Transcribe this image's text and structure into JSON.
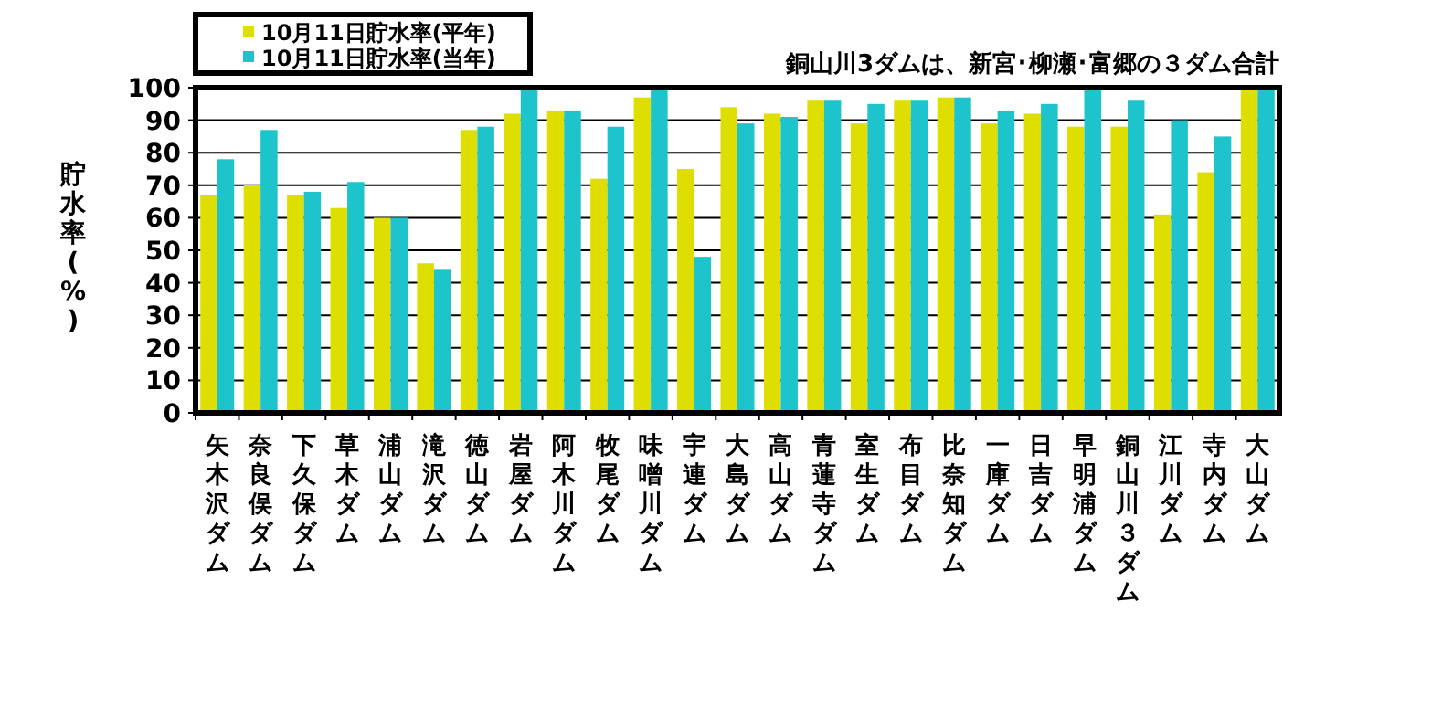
{
  "chart_data": {
    "type": "bar",
    "ylabel": "貯水率(%)",
    "annotations": [
      "銅山川3ダムは、新宮･柳瀬･富郷の３ダム合計"
    ],
    "categories": [
      "矢木沢ダム",
      "奈良俣ダム",
      "下久保ダム",
      "草木ダム",
      "浦山ダム",
      "滝沢ダム",
      "徳山ダム",
      "岩屋ダム",
      "阿木川ダム",
      "牧尾ダム",
      "味噌川ダム",
      "宇連ダム",
      "大島ダム",
      "高山ダム",
      "青蓮寺ダム",
      "室生ダム",
      "布目ダム",
      "比奈知ダム",
      "一庫ダム",
      "日吉ダム",
      "早明浦ダム",
      "銅山川３ダム",
      "江川ダム",
      "寺内ダム",
      "大山ダム"
    ],
    "series": [
      {
        "name": "10月11日貯水率(平年)",
        "color": "#dede00",
        "values": [
          67,
          70,
          67,
          63,
          60,
          46,
          87,
          92,
          93,
          72,
          97,
          75,
          94,
          92,
          96,
          89,
          96,
          97,
          89,
          92,
          88,
          88,
          61,
          74,
          100
        ]
      },
      {
        "name": "10月11日貯水率(当年)",
        "color": "#1ec4cc",
        "values": [
          78,
          87,
          68,
          71,
          60,
          44,
          88,
          100,
          93,
          88,
          100,
          48,
          89,
          91,
          96,
          95,
          96,
          97,
          93,
          95,
          100,
          96,
          90,
          85,
          100
        ]
      }
    ],
    "ylim": [
      0,
      100
    ],
    "yticks": [
      0,
      10,
      20,
      30,
      40,
      50,
      60,
      70,
      80,
      90,
      100
    ],
    "grid": "y",
    "legend": "top left"
  }
}
